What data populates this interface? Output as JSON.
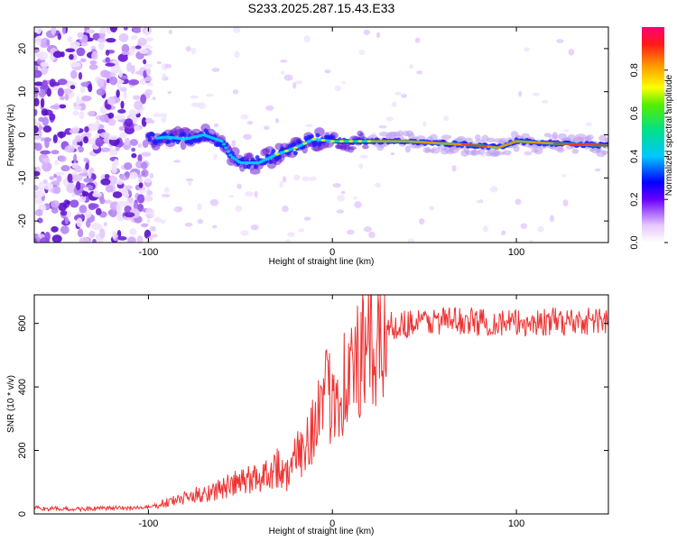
{
  "title": "S233.2025.287.15.43.E33",
  "chart_data": [
    {
      "type": "heatmap",
      "title": "S233.2025.287.15.43.E33",
      "xlabel": "Height of straight line (km)",
      "ylabel": "Frequency (Hz)",
      "xlim": [
        -162,
        150
      ],
      "ylim": [
        -25,
        25
      ],
      "xticks": [
        -100,
        0,
        100
      ],
      "xtick_labels": [
        "-100",
        "0",
        "100"
      ],
      "yticks": [
        -20,
        -10,
        0,
        10,
        20
      ],
      "ytick_labels": [
        "-20",
        "-10",
        "0",
        "10",
        "20"
      ],
      "frequency_track": {
        "x": [
          -100,
          -90,
          -80,
          -70,
          -60,
          -55,
          -50,
          -40,
          -30,
          -20,
          -10,
          0,
          10,
          20,
          40,
          60,
          80,
          90,
          100,
          120,
          150
        ],
        "y": [
          -1,
          -0.5,
          -1,
          0,
          -1.5,
          -5,
          -6.5,
          -6.5,
          -4.5,
          -3,
          -1,
          -1.5,
          -1.5,
          -1.5,
          -1.5,
          -2,
          -2.5,
          -3,
          -1.5,
          -2,
          -2.5
        ]
      },
      "colorbar": {
        "label": "Normalized spectral amplitude",
        "range": [
          0,
          1
        ],
        "ticks": [
          0.0,
          0.2,
          0.4,
          0.6,
          0.8
        ],
        "tick_labels": [
          "0.0",
          "0.2",
          "0.4",
          "0.6",
          "0.8"
        ]
      }
    },
    {
      "type": "line",
      "xlabel": "Height of straight line (km)",
      "ylabel": "SNR (10 * v/v)",
      "xlim": [
        -162,
        150
      ],
      "ylim": [
        0,
        690
      ],
      "xticks": [
        -100,
        0,
        100
      ],
      "xtick_labels": [
        "-100",
        "0",
        "100"
      ],
      "yticks": [
        0,
        200,
        400,
        600
      ],
      "ytick_labels": [
        "0",
        "200",
        "400",
        "600"
      ],
      "series": [
        {
          "name": "SNR",
          "color": "#ee3333",
          "x": [
            -162,
            -140,
            -120,
            -100,
            -90,
            -80,
            -70,
            -60,
            -50,
            -40,
            -30,
            -25,
            -20,
            -15,
            -10,
            -5,
            0,
            5,
            10,
            15,
            20,
            25,
            30,
            40,
            60,
            80,
            100,
            120,
            150
          ],
          "y": [
            18,
            15,
            18,
            20,
            35,
            50,
            65,
            80,
            100,
            115,
            150,
            120,
            170,
            220,
            290,
            340,
            390,
            410,
            440,
            480,
            520,
            560,
            590,
            600,
            610,
            605,
            600,
            605,
            610
          ]
        }
      ]
    }
  ]
}
